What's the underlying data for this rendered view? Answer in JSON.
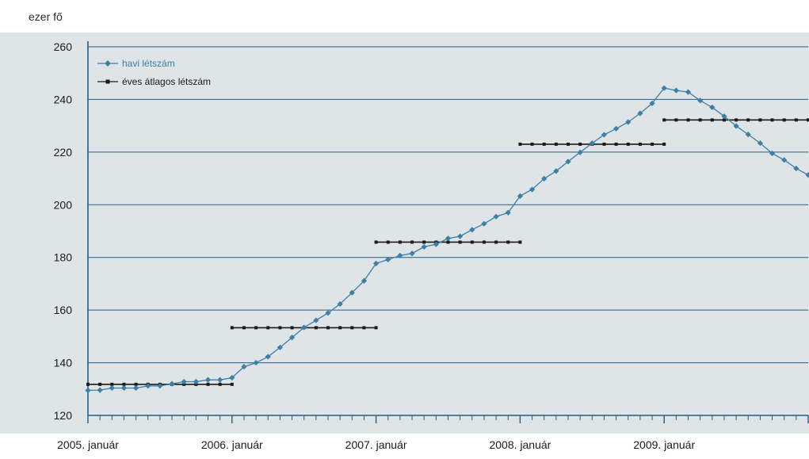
{
  "chart_data": {
    "type": "line",
    "unit_label": "ezer fő",
    "ylim": [
      120,
      260
    ],
    "yticks": [
      120,
      140,
      160,
      180,
      200,
      220,
      240,
      260
    ],
    "xlim_month_index": [
      0,
      60
    ],
    "x_tick_labels": [
      {
        "month_index": 0,
        "label": "2005. január"
      },
      {
        "month_index": 12,
        "label": "2006. január"
      },
      {
        "month_index": 24,
        "label": "2007. január"
      },
      {
        "month_index": 36,
        "label": "2008. január"
      },
      {
        "month_index": 48,
        "label": "2009. január"
      }
    ],
    "grid": true,
    "legend_position": "top-left",
    "series": [
      {
        "name": "havi létszám",
        "color": "#3e7fa6",
        "marker": "diamond",
        "start": "2005. január",
        "values": [
          129.5,
          129.6,
          130.4,
          130.4,
          130.4,
          131.2,
          131.2,
          132.0,
          132.8,
          132.8,
          133.5,
          133.5,
          134.3,
          138.5,
          140.0,
          142.3,
          145.8,
          149.6,
          153.4,
          156.1,
          158.9,
          162.3,
          166.6,
          171.1,
          177.7,
          179.2,
          180.7,
          181.5,
          184.0,
          185.0,
          187.2,
          188.0,
          190.5,
          192.8,
          195.5,
          197.0,
          203.3,
          205.8,
          209.9,
          212.8,
          216.4,
          219.9,
          223.4,
          226.6,
          228.9,
          231.4,
          234.7,
          238.5,
          244.3,
          243.4,
          242.8,
          239.6,
          237.0,
          233.6,
          229.9,
          226.7,
          223.4,
          219.5,
          217.0,
          213.8,
          211.3
        ]
      },
      {
        "name": "éves átlagos létszám",
        "color": "#1a1a1a",
        "marker": "square",
        "segments": [
          {
            "from": 0,
            "to": 12,
            "value": 131.8
          },
          {
            "from": 12,
            "to": 24,
            "value": 153.3
          },
          {
            "from": 24,
            "to": 36,
            "value": 185.8
          },
          {
            "from": 36,
            "to": 48,
            "value": 223.0
          },
          {
            "from": 48,
            "to": 60,
            "value": 232.2
          }
        ]
      }
    ]
  },
  "colors": {
    "plot_background": "#dfe4e6",
    "grid_line": "#1f5f8b",
    "axis": "#1f5f8b"
  }
}
